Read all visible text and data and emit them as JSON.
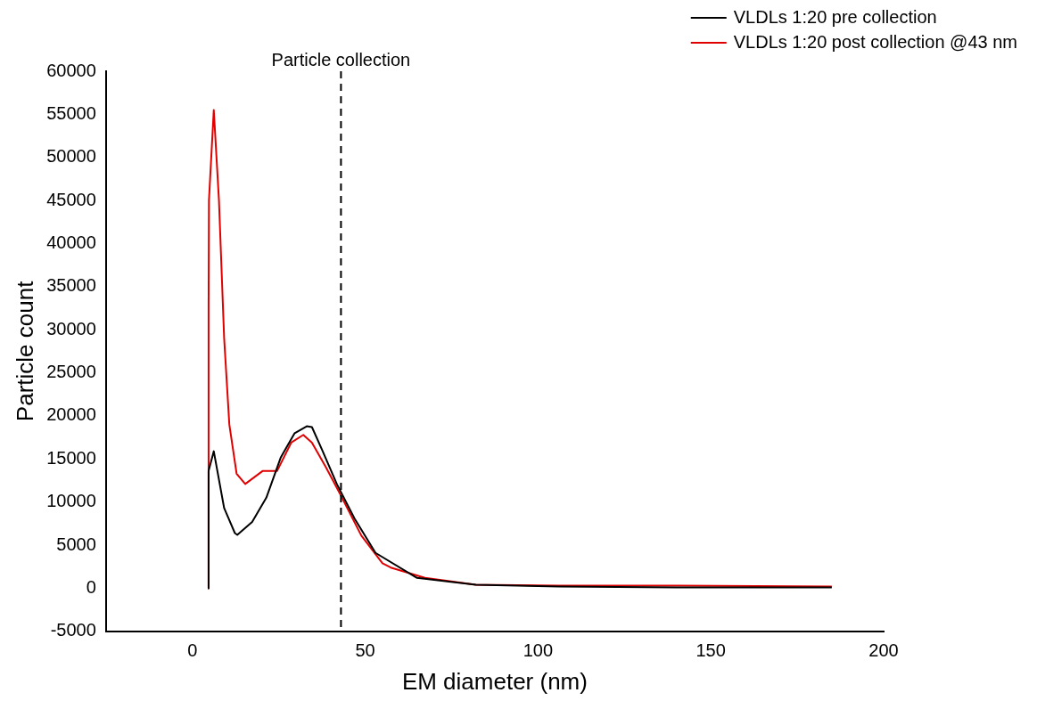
{
  "chart_data": {
    "type": "line",
    "xlabel": "EM diameter (nm)",
    "ylabel": "Particle count",
    "xlim": [
      -25,
      200
    ],
    "xticks": [
      0,
      50,
      100,
      150,
      200
    ],
    "ylim": [
      -5000,
      60000
    ],
    "yticks": [
      -5000,
      0,
      5000,
      10000,
      15000,
      20000,
      25000,
      30000,
      35000,
      40000,
      45000,
      50000,
      55000,
      60000
    ],
    "grid": false,
    "legend": "top right",
    "marker": "none",
    "line_style": "solid",
    "ref_lines": [
      {
        "axis": "x",
        "value": 43,
        "label": "Particle collection",
        "color": "#000000",
        "line_style": "dashed"
      }
    ],
    "series": [
      {
        "name": "VLDLs 1:20 pre collection",
        "color": "#000000",
        "x": [
          4.5,
          4.7,
          6.2,
          9.2,
          12.3,
          13,
          17.3,
          21.4,
          25.6,
          29.6,
          33.1,
          34.6,
          37.6,
          41.8,
          46.9,
          53,
          65,
          82,
          106,
          140,
          185
        ],
        "values": [
          0,
          13600,
          15900,
          9300,
          6400,
          6200,
          7700,
          10500,
          15200,
          18000,
          18800,
          18700,
          16000,
          12100,
          8100,
          4100,
          1200,
          400,
          200,
          100,
          100
        ]
      },
      {
        "name": "VLDLs 1:20 post collection @43 nm",
        "color": "#e00000",
        "x": [
          4.5,
          4.7,
          4.8,
          6.2,
          7.7,
          9.2,
          10.7,
          12.8,
          15.3,
          20.3,
          24.5,
          28.6,
          32.1,
          34.6,
          38.7,
          42.8,
          48.9,
          55,
          57.4,
          67.3,
          82,
          106,
          140,
          185
        ],
        "values": [
          0,
          33000,
          45000,
          55500,
          45000,
          29000,
          19000,
          13300,
          12100,
          13600,
          13600,
          16900,
          17800,
          16900,
          14000,
          10900,
          6100,
          2900,
          2400,
          1200,
          400,
          300,
          300,
          200
        ]
      }
    ]
  }
}
